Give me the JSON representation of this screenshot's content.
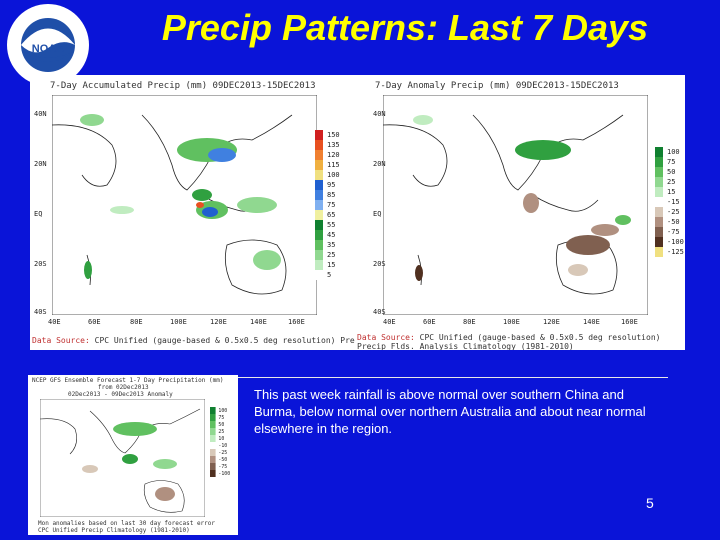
{
  "slide": {
    "title": "Precip Patterns: Last 7 Days",
    "body_text": "This past week rainfall is above normal over southern China and Burma, below normal over northern Australia and about near normal elsewhere in the region.",
    "page_number": "5"
  },
  "logo": {
    "name": "NOAA",
    "ring_text": "NATIONAL OCEANIC AND ATMOSPHERIC ADMINISTRATION",
    "colors": {
      "blue": "#1f4fa8",
      "white": "#ffffff"
    }
  },
  "colors": {
    "background": "#0a14d8",
    "title": "#ffff00",
    "body_text": "#ffffff"
  },
  "map_left": {
    "title": "7-Day Accumulated Precip (mm) 09DEC2013-15DEC2013",
    "source_prefix": "Data Source:",
    "source_text": "CPC Unified (gauge-based & 0.5x0.5 deg resolution) Precipitation Analysis",
    "lat_ticks": [
      "40N",
      "30N",
      "20N",
      "10N",
      "EQ",
      "10S",
      "20S",
      "30S",
      "40S"
    ],
    "lon_ticks": [
      "40E",
      "60E",
      "80E",
      "100E",
      "120E",
      "140E",
      "160E"
    ],
    "legend": [
      {
        "label": "150",
        "color": "#d02020"
      },
      {
        "label": "135",
        "color": "#e85020"
      },
      {
        "label": "120",
        "color": "#f08030"
      },
      {
        "label": "115",
        "color": "#f0b040"
      },
      {
        "label": "100",
        "color": "#f0e080"
      },
      {
        "label": "95",
        "color": "#2060d0"
      },
      {
        "label": "85",
        "color": "#4080e0"
      },
      {
        "label": "75",
        "color": "#80b0f0"
      },
      {
        "label": "65",
        "color": "#f0f0a0"
      },
      {
        "label": "55",
        "color": "#108030"
      },
      {
        "label": "45",
        "color": "#30a040"
      },
      {
        "label": "35",
        "color": "#60c060"
      },
      {
        "label": "25",
        "color": "#90d890"
      },
      {
        "label": "15",
        "color": "#c0ecc0"
      },
      {
        "label": "5",
        "color": "#ffffff"
      }
    ]
  },
  "map_right": {
    "title": "7-Day Anomaly Precip (mm) 09DEC2013-15DEC2013",
    "source_prefix": "Data Source:",
    "source_text": "CPC Unified (gauge-based & 0.5x0.5 deg resolution) Precip Flds. Analysis Climatology (1981-2010)",
    "lat_ticks": [
      "40N",
      "30N",
      "20N",
      "10N",
      "EQ",
      "10S",
      "20S",
      "30S",
      "40S"
    ],
    "lon_ticks": [
      "40E",
      "60E",
      "80E",
      "100E",
      "120E",
      "140E",
      "160E"
    ],
    "legend": [
      {
        "label": "100",
        "color": "#108030"
      },
      {
        "label": "75",
        "color": "#30a040"
      },
      {
        "label": "50",
        "color": "#60c060"
      },
      {
        "label": "25",
        "color": "#90d890"
      },
      {
        "label": "15",
        "color": "#c0ecc0"
      },
      {
        "label": "-15",
        "color": "#ffffff"
      },
      {
        "label": "-25",
        "color": "#d8c8b8"
      },
      {
        "label": "-50",
        "color": "#b09080"
      },
      {
        "label": "-75",
        "color": "#806050"
      },
      {
        "label": "-100",
        "color": "#503020"
      },
      {
        "label": "-125",
        "color": "#f0e080"
      }
    ]
  },
  "map_bottom": {
    "title_line1": "NCEP GFS Ensemble Forecast 1-7 Day Precipitation (mm)",
    "title_line2": "from 02Dec2013",
    "title_line3": "02Dec2013 - 09Dec2013 Anomaly",
    "footer_line1": "Mon anomalies based on last 30 day forecast error",
    "footer_line2": "CPC Unified Precip Climatology (1981-2010)",
    "legend": [
      {
        "label": "100",
        "color": "#108030"
      },
      {
        "label": "75",
        "color": "#30a040"
      },
      {
        "label": "50",
        "color": "#60c060"
      },
      {
        "label": "25",
        "color": "#90d890"
      },
      {
        "label": "10",
        "color": "#c0ecc0"
      },
      {
        "label": "-10",
        "color": "#ffffff"
      },
      {
        "label": "-25",
        "color": "#d8c8b8"
      },
      {
        "label": "-50",
        "color": "#b09080"
      },
      {
        "label": "-75",
        "color": "#806050"
      },
      {
        "label": "-100",
        "color": "#503020"
      }
    ]
  }
}
